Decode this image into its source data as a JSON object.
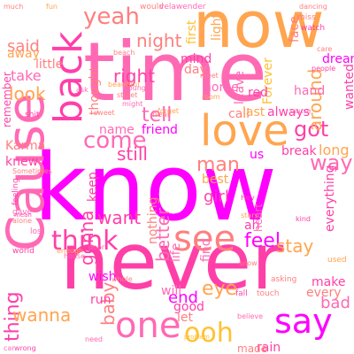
{
  "colors": {
    "pink": "#ff69b4",
    "magenta": "#ff00ff",
    "hotpink": "#ff3fa8",
    "salmon": "#ff7f7f",
    "orange": "#ffa54f",
    "gold": "#ffc133",
    "lightpink": "#ff9ec8"
  },
  "words": [
    "now",
    "time",
    "know",
    "never",
    "Cause",
    "back",
    "love",
    "see",
    "say",
    "one",
    "ooh",
    "think",
    "yeah",
    "come",
    "got",
    "feel",
    "way",
    "thing",
    "wanna",
    "said",
    "look",
    "take",
    "right",
    "night",
    "tell",
    "still",
    "man",
    "around",
    "want",
    "better",
    "gonna",
    "baby",
    "end",
    "eye",
    "stay",
    "little",
    "away",
    "Karma",
    "knew",
    "mind",
    "day",
    "home",
    "us",
    "girl",
    "best",
    "friend",
    "name",
    "call",
    "last",
    "always",
    "Forever",
    "hand",
    "wanted",
    "dream",
    "light",
    "face",
    "first",
    "nothing",
    "keep",
    "thought",
    "ah",
    "red",
    "leave",
    "break",
    "long",
    "everything",
    "make",
    "every",
    "bad",
    "rain",
    "made",
    "will",
    "good",
    "let",
    "run",
    "wish",
    "find",
    "life",
    "heart",
    "remember",
    "feeling",
    "Sometimes",
    "gave",
    "hear",
    "world",
    "sweet",
    "lost",
    "alone",
    "beautiful",
    "miss",
    "watch",
    "beach",
    "forget",
    "need",
    "snow",
    "door",
    "kind",
    "street",
    "house",
    "asking",
    "believe",
    "fall",
    "touch",
    "problem",
    "used",
    "might",
    "enough",
    "car",
    "wrong",
    "mean",
    "whole",
    "Hey",
    "cause",
    "meet",
    "people",
    "shit",
    "care",
    "young",
    "stars",
    "dancing",
    "would",
    "velawender",
    "much",
    "fun",
    "ask",
    "room"
  ]
}
